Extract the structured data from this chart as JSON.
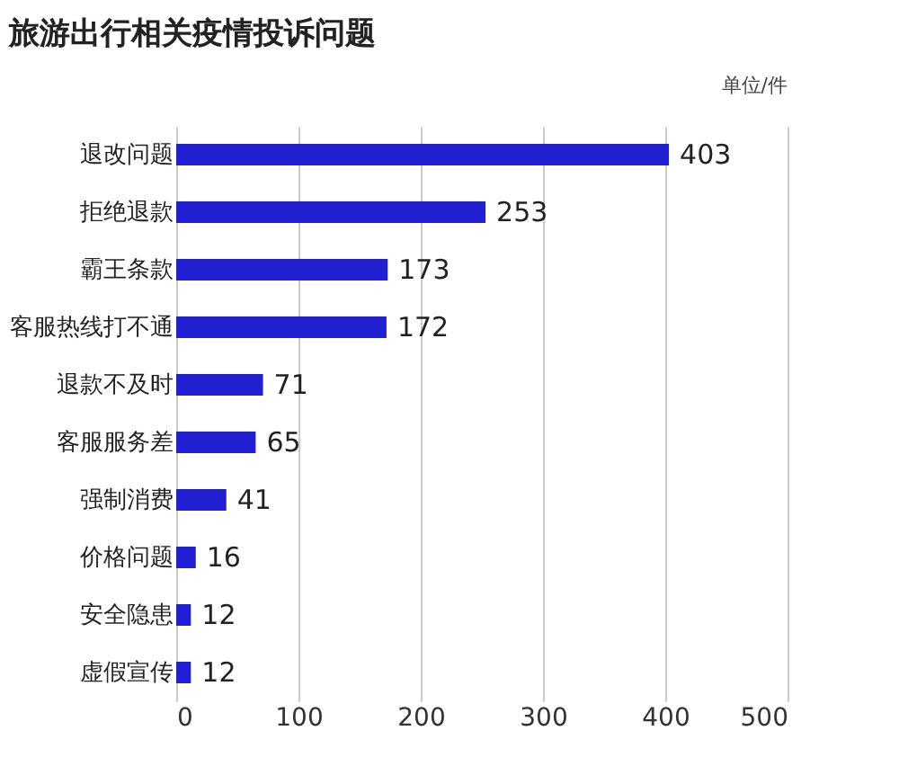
{
  "chart_data": {
    "type": "bar",
    "orientation": "horizontal",
    "title": "旅游出行相关疫情投诉问题",
    "annotations": [
      "单位/件"
    ],
    "categories": [
      "退改问题",
      "拒绝退款",
      "霸王条款",
      "客服热线打不通",
      "退款不及时",
      "客服服务差",
      "强制消费",
      "价格问题",
      "安全隐患",
      "虚假宣传"
    ],
    "values": [
      403,
      253,
      173,
      172,
      71,
      65,
      41,
      16,
      12,
      12
    ],
    "color": "#2020d0",
    "xlim": [
      0,
      500
    ],
    "xticks": [
      0,
      100,
      200,
      300,
      400,
      500
    ],
    "grid": "x",
    "data_labels": true
  }
}
